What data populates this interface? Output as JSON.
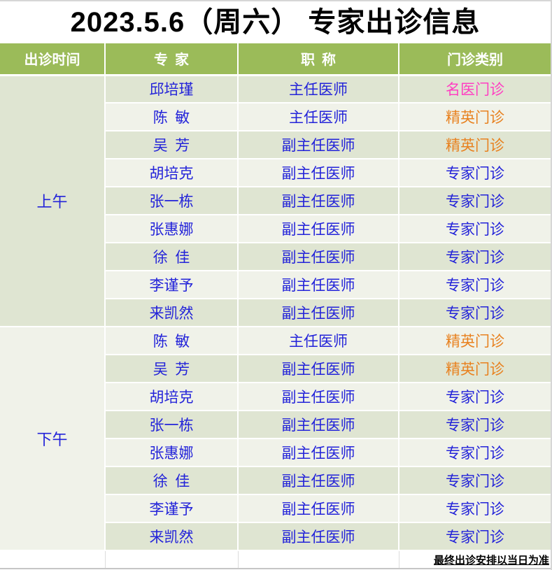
{
  "page": {
    "title": "2023.5.6（周六） 专家出诊信息",
    "footer_note": "最终出诊安排以当日为准"
  },
  "table": {
    "columns": [
      "出诊时间",
      "专 家",
      "职 称",
      "门诊类别"
    ],
    "sections": [
      {
        "time": "上午",
        "rows": [
          {
            "name": "邱培瑾",
            "title": "主任医师",
            "category": "名医门诊"
          },
          {
            "name": "陈 敏",
            "title": "主任医师",
            "category": "精英门诊"
          },
          {
            "name": "吴 芳",
            "title": "副主任医师",
            "category": "精英门诊"
          },
          {
            "name": "胡培克",
            "title": "副主任医师",
            "category": "专家门诊"
          },
          {
            "name": "张一栋",
            "title": "副主任医师",
            "category": "专家门诊"
          },
          {
            "name": "张惠娜",
            "title": "副主任医师",
            "category": "专家门诊"
          },
          {
            "name": "徐 佳",
            "title": "副主任医师",
            "category": "专家门诊"
          },
          {
            "name": "李谨予",
            "title": "副主任医师",
            "category": "专家门诊"
          },
          {
            "name": "来凯然",
            "title": "副主任医师",
            "category": "专家门诊"
          }
        ]
      },
      {
        "time": "下午",
        "rows": [
          {
            "name": "陈 敏",
            "title": "主任医师",
            "category": "精英门诊"
          },
          {
            "name": "吴 芳",
            "title": "副主任医师",
            "category": "精英门诊"
          },
          {
            "name": "胡培克",
            "title": "副主任医师",
            "category": "专家门诊"
          },
          {
            "name": "张一栋",
            "title": "副主任医师",
            "category": "专家门诊"
          },
          {
            "name": "张惠娜",
            "title": "副主任医师",
            "category": "专家门诊"
          },
          {
            "name": "徐 佳",
            "title": "副主任医师",
            "category": "专家门诊"
          },
          {
            "name": "李谨予",
            "title": "副主任医师",
            "category": "专家门诊"
          },
          {
            "name": "来凯然",
            "title": "副主任医师",
            "category": "专家门诊"
          }
        ]
      }
    ],
    "category_colors": {
      "名医门诊": "#ff3fc2",
      "精英门诊": "#e8811f",
      "专家门诊": "#2323d9"
    }
  },
  "colors": {
    "header-green": "#9bbb59",
    "row-green": "#dfe5d2",
    "row-light": "#f0f2e9",
    "text-blue": "#2323d9",
    "page-border": "#d6d6d6"
  }
}
